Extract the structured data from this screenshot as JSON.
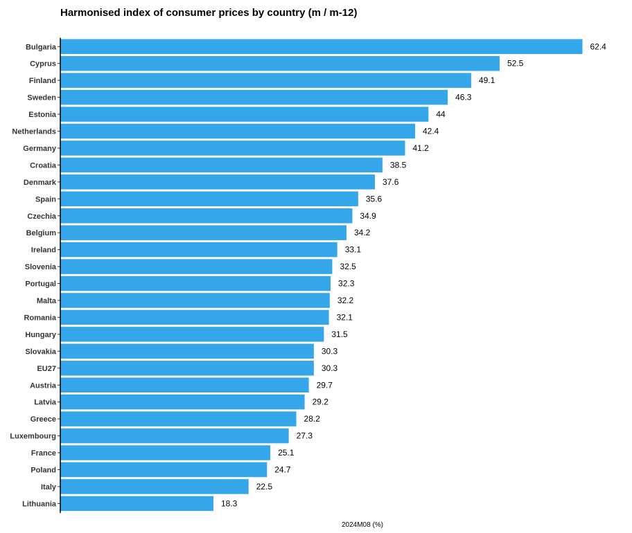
{
  "chart_data": {
    "type": "bar",
    "orientation": "horizontal",
    "title": "Harmonised index of consumer prices by country (m / m-12)",
    "xlabel": "2024M08 (%)",
    "ylabel": "",
    "xlim": [
      0,
      63
    ],
    "grid": false,
    "legend": "none",
    "bar_color": "#36a6ea",
    "categories": [
      "Bulgaria",
      "Cyprus",
      "Finland",
      "Sweden",
      "Estonia",
      "Netherlands",
      "Germany",
      "Croatia",
      "Denmark",
      "Spain",
      "Czechia",
      "Belgium",
      "Ireland",
      "Slovenia",
      "Portugal",
      "Malta",
      "Romania",
      "Hungary",
      "Slovakia",
      "EU27",
      "Austria",
      "Latvia",
      "Greece",
      "Luxembourg",
      "France",
      "Poland",
      "Italy",
      "Lithuania"
    ],
    "values": [
      62.4,
      52.5,
      49.1,
      46.3,
      44,
      42.4,
      41.2,
      38.5,
      37.6,
      35.6,
      34.9,
      34.2,
      33.1,
      32.5,
      32.3,
      32.2,
      32.1,
      31.5,
      30.3,
      30.3,
      29.7,
      29.2,
      28.2,
      27.3,
      25.1,
      24.7,
      22.5,
      18.3
    ],
    "value_labels": [
      "62.4",
      "52.5",
      "49.1",
      "46.3",
      "44",
      "42.4",
      "41.2",
      "38.5",
      "37.6",
      "35.6",
      "34.9",
      "34.2",
      "33.1",
      "32.5",
      "32.3",
      "32.2",
      "32.1",
      "31.5",
      "30.3",
      "30.3",
      "29.7",
      "29.2",
      "28.2",
      "27.3",
      "25.1",
      "24.7",
      "22.5",
      "18.3"
    ]
  }
}
